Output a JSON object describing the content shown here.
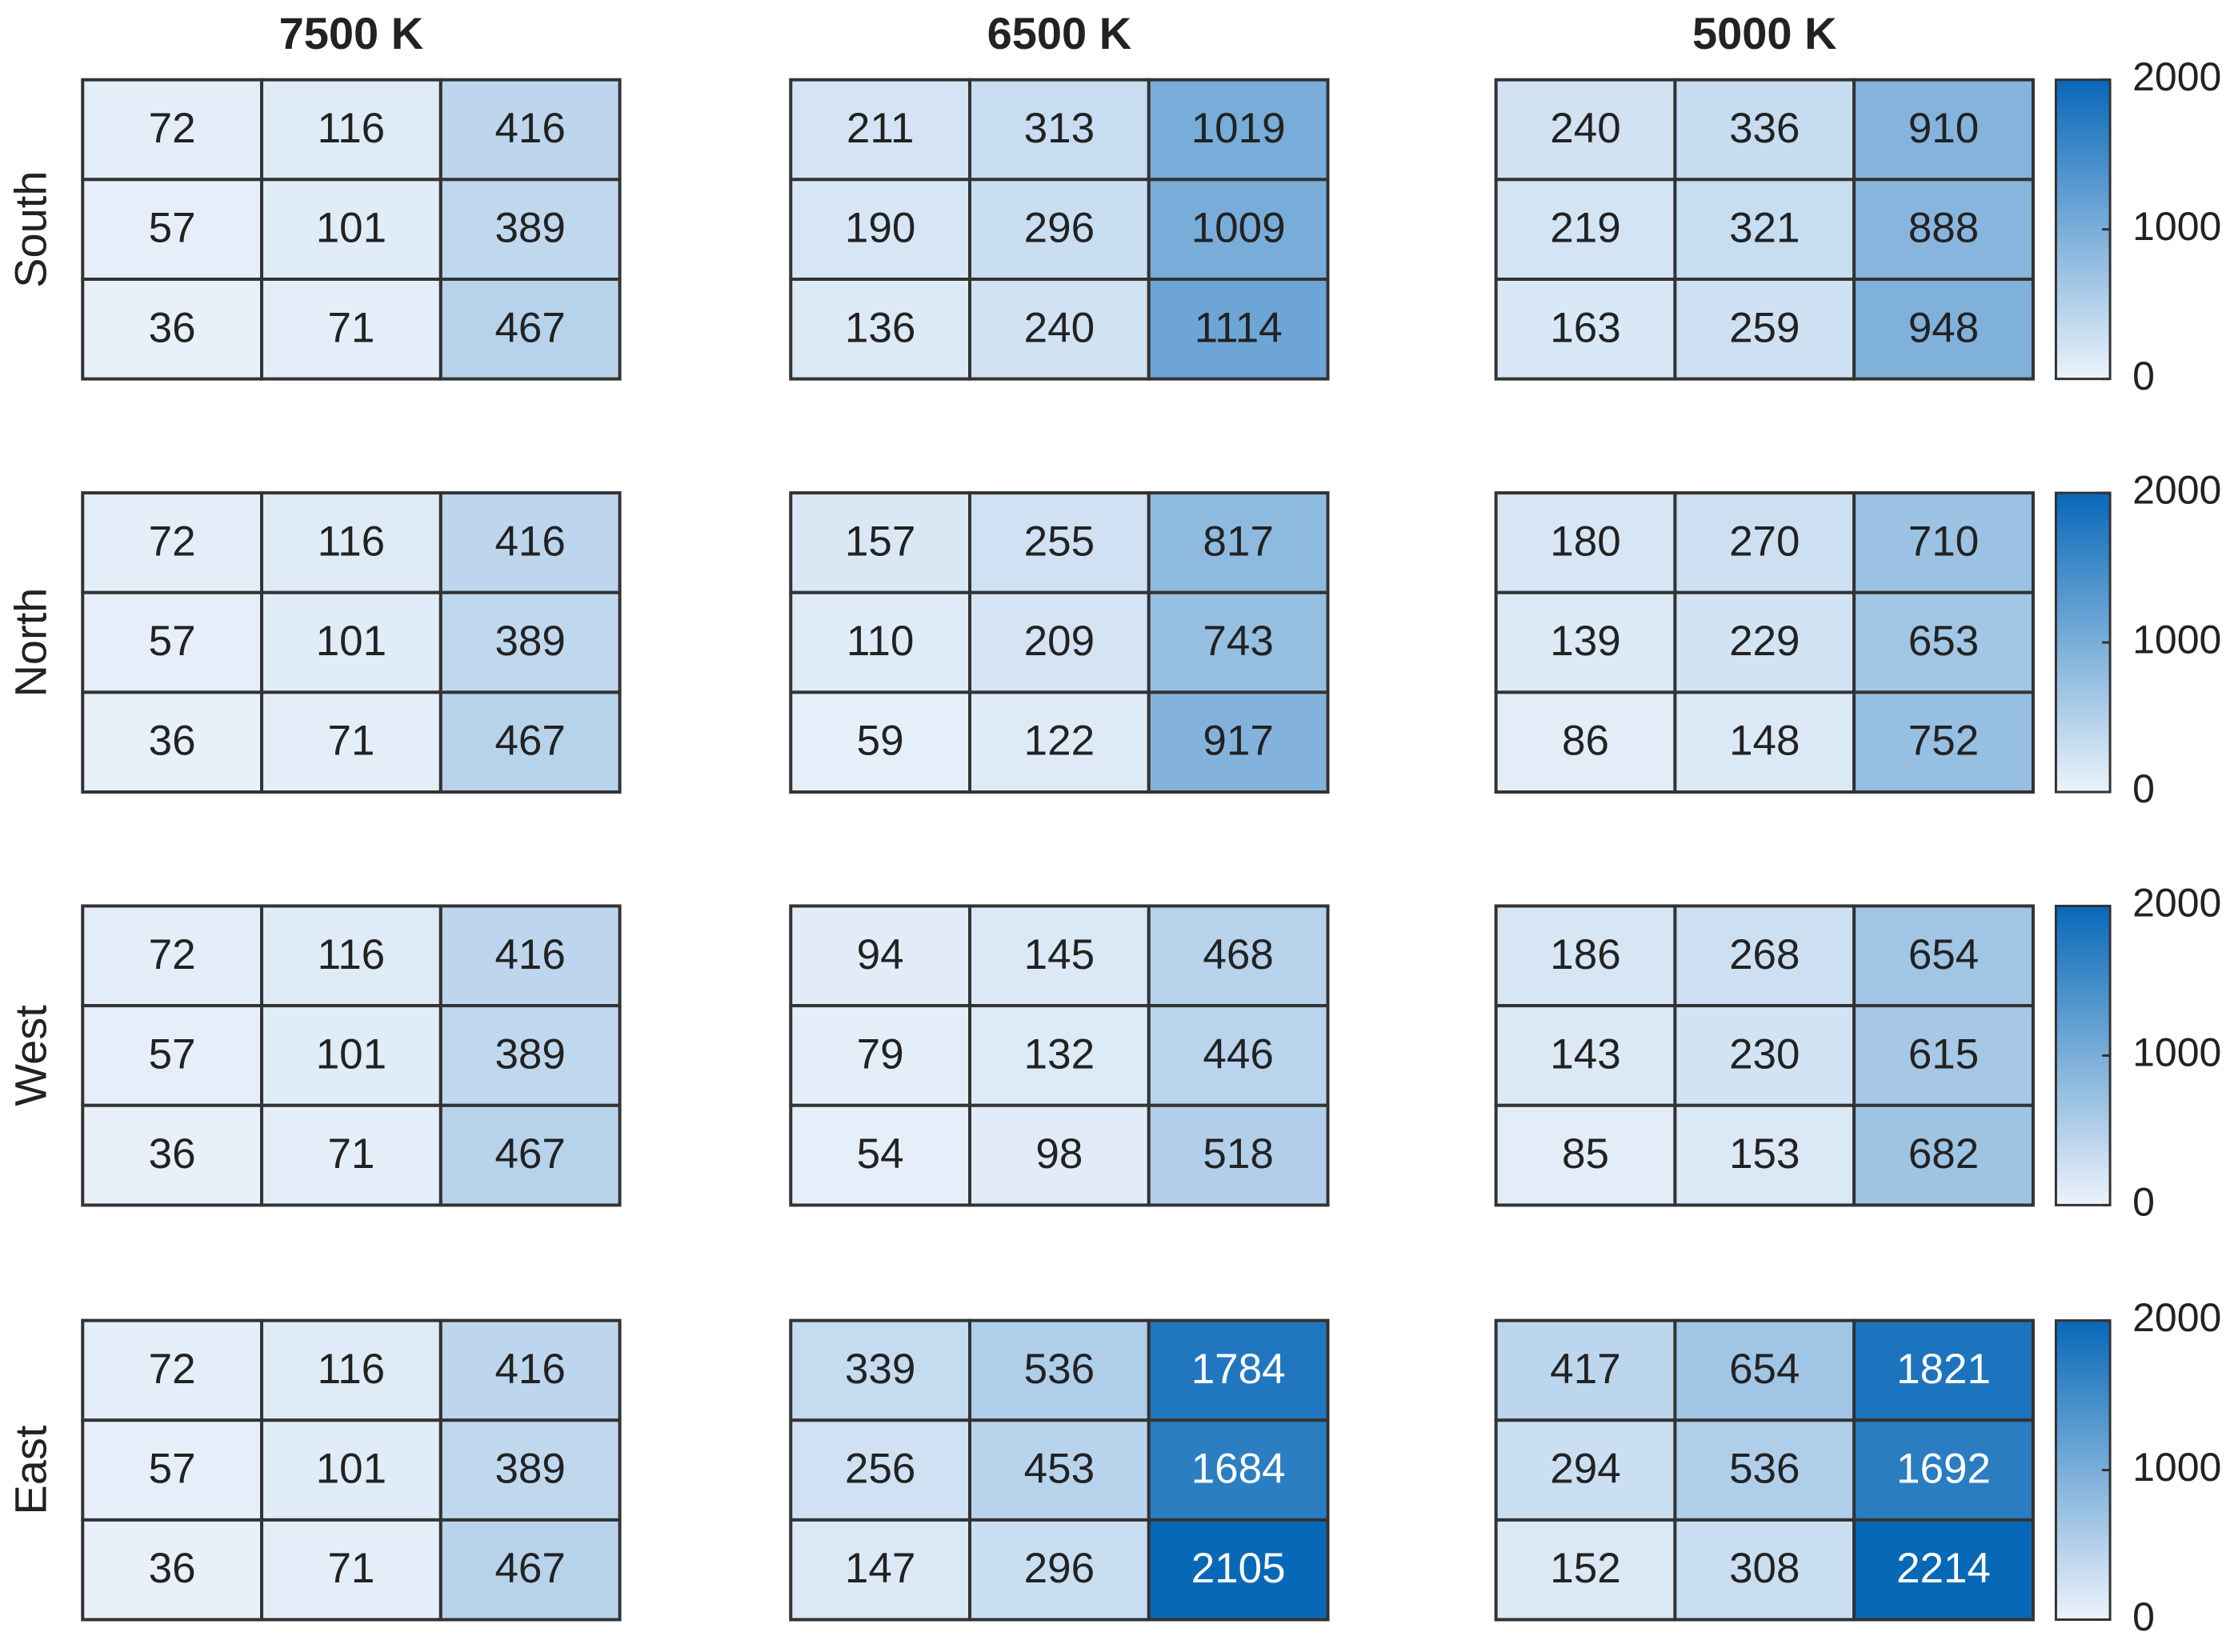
{
  "chart_data": [
    {
      "type": "heatmap",
      "title": "7500 K",
      "ylabel": "South",
      "values": [
        [
          72,
          116,
          416
        ],
        [
          57,
          101,
          389
        ],
        [
          36,
          71,
          467
        ]
      ],
      "clim": [
        0,
        2000
      ]
    },
    {
      "type": "heatmap",
      "title": "6500 K",
      "values": [
        [
          211,
          313,
          1019
        ],
        [
          190,
          296,
          1009
        ],
        [
          136,
          240,
          1114
        ]
      ],
      "clim": [
        0,
        2000
      ]
    },
    {
      "type": "heatmap",
      "title": "5000 K",
      "values": [
        [
          240,
          336,
          910
        ],
        [
          219,
          321,
          888
        ],
        [
          163,
          259,
          948
        ]
      ],
      "clim": [
        0,
        2000
      ],
      "colorbar_ticks": [
        0,
        1000,
        2000
      ]
    },
    {
      "type": "heatmap",
      "ylabel": "North",
      "values": [
        [
          72,
          116,
          416
        ],
        [
          57,
          101,
          389
        ],
        [
          36,
          71,
          467
        ]
      ],
      "clim": [
        0,
        2000
      ]
    },
    {
      "type": "heatmap",
      "values": [
        [
          157,
          255,
          817
        ],
        [
          110,
          209,
          743
        ],
        [
          59,
          122,
          917
        ]
      ],
      "clim": [
        0,
        2000
      ]
    },
    {
      "type": "heatmap",
      "values": [
        [
          180,
          270,
          710
        ],
        [
          139,
          229,
          653
        ],
        [
          86,
          148,
          752
        ]
      ],
      "clim": [
        0,
        2000
      ],
      "colorbar_ticks": [
        0,
        1000,
        2000
      ]
    },
    {
      "type": "heatmap",
      "ylabel": "West",
      "values": [
        [
          72,
          116,
          416
        ],
        [
          57,
          101,
          389
        ],
        [
          36,
          71,
          467
        ]
      ],
      "clim": [
        0,
        2000
      ]
    },
    {
      "type": "heatmap",
      "values": [
        [
          94,
          145,
          468
        ],
        [
          79,
          132,
          446
        ],
        [
          54,
          98,
          518
        ]
      ],
      "clim": [
        0,
        2000
      ]
    },
    {
      "type": "heatmap",
      "values": [
        [
          186,
          268,
          654
        ],
        [
          143,
          230,
          615
        ],
        [
          85,
          153,
          682
        ]
      ],
      "clim": [
        0,
        2000
      ],
      "colorbar_ticks": [
        0,
        1000,
        2000
      ]
    },
    {
      "type": "heatmap",
      "ylabel": "East",
      "values": [
        [
          72,
          116,
          416
        ],
        [
          57,
          101,
          389
        ],
        [
          36,
          71,
          467
        ]
      ],
      "clim": [
        0,
        2000
      ]
    },
    {
      "type": "heatmap",
      "values": [
        [
          339,
          536,
          1784
        ],
        [
          256,
          453,
          1684
        ],
        [
          147,
          296,
          2105
        ]
      ],
      "clim": [
        0,
        2000
      ]
    },
    {
      "type": "heatmap",
      "values": [
        [
          417,
          654,
          1821
        ],
        [
          294,
          536,
          1692
        ],
        [
          152,
          308,
          2214
        ]
      ],
      "clim": [
        0,
        2000
      ],
      "colorbar_ticks": [
        0,
        1000,
        2000
      ]
    }
  ]
}
